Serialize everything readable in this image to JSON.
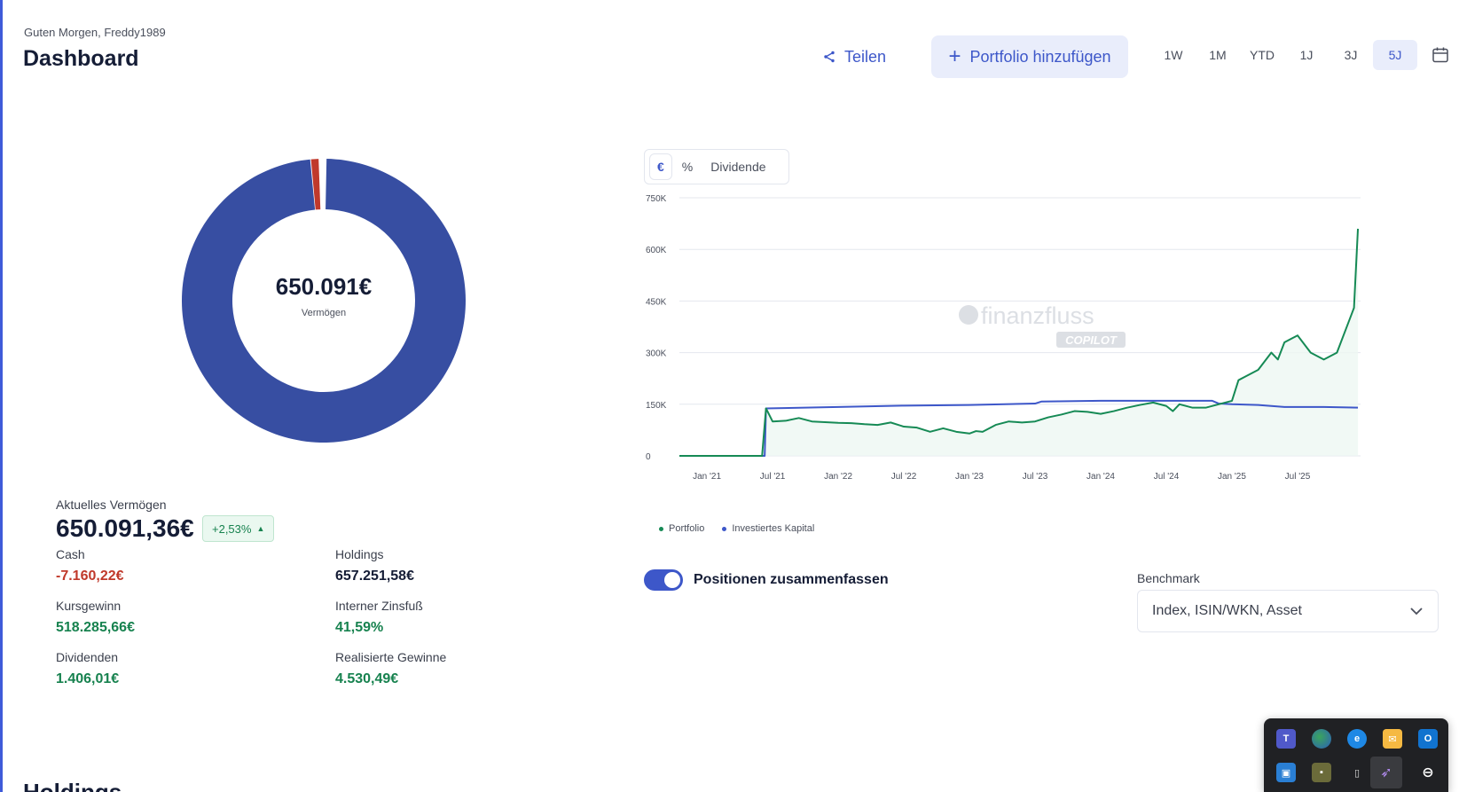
{
  "header": {
    "greeting": "Guten Morgen, Freddy1989",
    "title": "Dashboard",
    "share_label": "Teilen",
    "add_portfolio_label": "Portfolio hinzufügen",
    "ranges": [
      "1W",
      "1M",
      "YTD",
      "1J",
      "3J",
      "5J"
    ],
    "active_range": "5J"
  },
  "allocation": {
    "center_value": "650.091€",
    "center_label": "Vermögen",
    "segments": [
      {
        "name": "Holdings",
        "share": 0.9825,
        "color": "#374ea2"
      },
      {
        "name": "Cash",
        "share": 0.0095,
        "color": "#c0392b"
      }
    ]
  },
  "summary": {
    "current_label": "Aktuelles Vermögen",
    "current_value": "650.091,36€",
    "change": "+2,53%",
    "items": [
      {
        "label": "Cash",
        "value": "-7.160,22€",
        "tone": "neg"
      },
      {
        "label": "Holdings",
        "value": "657.251,58€",
        "tone": "neutral"
      },
      {
        "label": "Kursgewinn",
        "value": "518.285,66€",
        "tone": "pos"
      },
      {
        "label": "Interner Zinsfuß",
        "value": "41,59%",
        "tone": "pos"
      },
      {
        "label": "Dividenden",
        "value": "1.406,01€",
        "tone": "pos"
      },
      {
        "label": "Realisierte Gewinne",
        "value": "4.530,49€",
        "tone": "pos"
      }
    ]
  },
  "chart_controls": {
    "options": [
      "€",
      "%",
      "Dividende"
    ],
    "active": "€"
  },
  "watermark": {
    "brand": "finanzfluss",
    "sub": "COPILOT"
  },
  "chart_data": {
    "type": "line",
    "y_ticks": [
      "0",
      "150K",
      "300K",
      "450K",
      "600K",
      "750K"
    ],
    "ylim": [
      0,
      750000
    ],
    "x_ticks": [
      "Jan '21",
      "Jul '21",
      "Jan '22",
      "Jul '22",
      "Jan '23",
      "Jul '23",
      "Jan '24",
      "Jul '24",
      "Jan '25",
      "Jul '25"
    ],
    "x_tick_values": [
      2021.0,
      2021.5,
      2022.0,
      2022.5,
      2023.0,
      2023.5,
      2024.0,
      2024.5,
      2025.0,
      2025.5
    ],
    "xlim": [
      2020.79,
      2025.98
    ],
    "series": [
      {
        "name": "Portfolio",
        "color": "#168a55",
        "x": [
          2020.79,
          2021.0,
          2021.2,
          2021.4,
          2021.42,
          2021.45,
          2021.5,
          2021.6,
          2021.7,
          2021.8,
          2021.9,
          2022.0,
          2022.1,
          2022.2,
          2022.3,
          2022.4,
          2022.5,
          2022.6,
          2022.7,
          2022.8,
          2022.9,
          2023.0,
          2023.05,
          2023.1,
          2023.2,
          2023.3,
          2023.4,
          2023.5,
          2023.6,
          2023.7,
          2023.8,
          2023.9,
          2024.0,
          2024.1,
          2024.2,
          2024.3,
          2024.4,
          2024.5,
          2024.55,
          2024.6,
          2024.7,
          2024.8,
          2024.9,
          2025.0,
          2025.05,
          2025.1,
          2025.2,
          2025.3,
          2025.35,
          2025.4,
          2025.5,
          2025.6,
          2025.7,
          2025.8,
          2025.9,
          2025.93,
          2025.96
        ],
        "y": [
          0,
          0,
          0,
          0,
          0,
          138000,
          100000,
          102000,
          110000,
          100000,
          98000,
          96000,
          95000,
          92000,
          90000,
          97000,
          85000,
          82000,
          70000,
          80000,
          70000,
          65000,
          72000,
          70000,
          90000,
          100000,
          97000,
          100000,
          112000,
          120000,
          130000,
          128000,
          122000,
          130000,
          140000,
          148000,
          155000,
          145000,
          130000,
          150000,
          140000,
          140000,
          150000,
          160000,
          220000,
          230000,
          250000,
          300000,
          280000,
          330000,
          350000,
          300000,
          280000,
          300000,
          400000,
          430000,
          660000
        ]
      },
      {
        "name": "Investiertes Kapital",
        "color": "#3d57c9",
        "x": [
          2020.79,
          2021.0,
          2021.2,
          2021.44,
          2021.45,
          2022.0,
          2022.5,
          2023.0,
          2023.5,
          2023.55,
          2024.0,
          2024.5,
          2024.85,
          2024.9,
          2025.0,
          2025.2,
          2025.4,
          2025.5,
          2025.7,
          2025.96
        ],
        "y": [
          0,
          0,
          0,
          0,
          138000,
          142000,
          146000,
          148000,
          152000,
          158000,
          160000,
          160000,
          160000,
          152000,
          150000,
          148000,
          142000,
          142000,
          142000,
          140000
        ]
      }
    ]
  },
  "benchmark": {
    "label": "Benchmark",
    "placeholder": "Index, ISIN/WKN, Asset"
  },
  "merge_toggle": {
    "label": "Positionen zusammenfassen",
    "on": true
  },
  "sections": {
    "holdings_heading": "Holdings"
  },
  "tray": {
    "icons": [
      "teams-icon",
      "browser-icon",
      "edge-icon",
      "mail-icon",
      "outlook-icon",
      "remote-desktop-icon",
      "photos-icon",
      "usb-drive-icon",
      "feather-icon",
      "minus-circle-icon"
    ]
  }
}
